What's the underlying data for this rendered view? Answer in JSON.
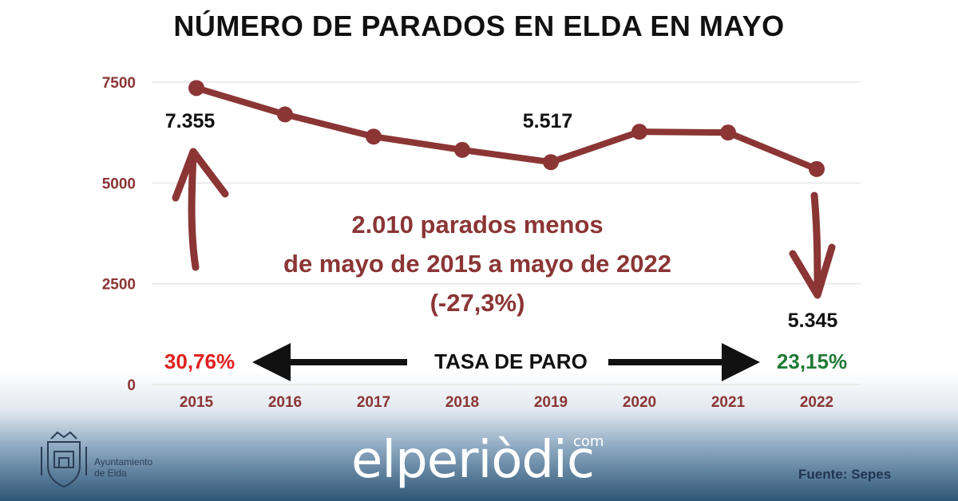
{
  "chart_data": {
    "type": "line",
    "title": "NÚMERO DE PARADOS EN ELDA EN MAYO",
    "categories": [
      "2015",
      "2016",
      "2017",
      "2018",
      "2019",
      "2020",
      "2021",
      "2022"
    ],
    "values": [
      7355,
      6700,
      6150,
      5820,
      5517,
      6270,
      6250,
      5345
    ],
    "ylim": [
      0,
      7500
    ],
    "yticks": [
      0,
      2500,
      5000,
      7500
    ],
    "xlabel": "",
    "ylabel": "",
    "grid": true,
    "series_color": "#8b3535",
    "data_labels": {
      "first": "7.355",
      "mid": "5.517",
      "last": "5.345"
    },
    "annotation": {
      "line1": "2.010 parados menos",
      "line2": "de mayo de 2015 a mayo de 2022",
      "line3": "(-27,3%)",
      "color": "#8b3535"
    },
    "unemployment_rate": {
      "label": "TASA DE PARO",
      "start": "30,76%",
      "start_color": "#e02020",
      "end": "23,15%",
      "end_color": "#1f7a35"
    }
  },
  "footer": {
    "logo_line1": "Ayuntamiento",
    "logo_line2": "de Elda",
    "brand": "elperiòdic",
    "brand_suffix": "com",
    "source": "Fuente: Sepes"
  }
}
